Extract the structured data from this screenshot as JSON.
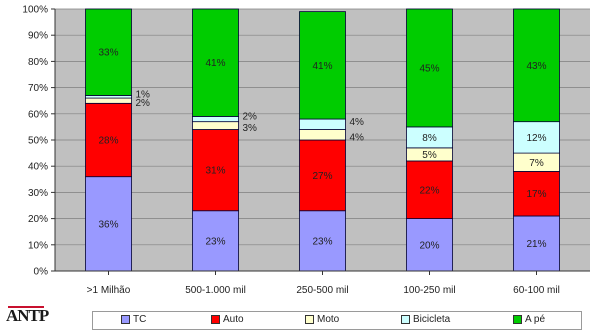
{
  "chart_data": {
    "type": "bar",
    "stacked": true,
    "percent": true,
    "categories": [
      ">1 Milhão",
      "500-1.000 mil",
      "250-500 mil",
      "100-250 mil",
      "60-100 mil"
    ],
    "series": [
      {
        "name": "TC",
        "color": "#9999ff",
        "values": [
          36,
          23,
          23,
          20,
          21
        ],
        "labels": [
          "36%",
          "23%",
          "23%",
          "20%",
          "21%"
        ]
      },
      {
        "name": "Auto",
        "color": "#ff0000",
        "values": [
          28,
          31,
          27,
          22,
          17
        ],
        "labels": [
          "28%",
          "31%",
          "27%",
          "22%",
          "17%"
        ]
      },
      {
        "name": "Moto",
        "color": "#ffffcc",
        "values": [
          2,
          3,
          4,
          5,
          7
        ],
        "labels": [
          "2%",
          "3%",
          "4%",
          "5%",
          "7%"
        ]
      },
      {
        "name": "Bicicleta",
        "color": "#ccffff",
        "values": [
          1,
          2,
          4,
          8,
          12
        ],
        "labels": [
          "1%",
          "2%",
          "4%",
          "8%",
          "12%"
        ]
      },
      {
        "name": "A pé",
        "color": "#00cc00",
        "values": [
          33,
          41,
          41,
          45,
          43
        ],
        "labels": [
          "33%",
          "41%",
          "41%",
          "45%",
          "43%"
        ]
      }
    ],
    "ylim": [
      0,
      100
    ],
    "yticks": [
      "0%",
      "10%",
      "20%",
      "30%",
      "40%",
      "50%",
      "60%",
      "70%",
      "80%",
      "90%",
      "100%"
    ],
    "legend_position": "bottom",
    "grid": true
  },
  "logo": {
    "text": "ANTP"
  },
  "colors": {
    "plot_bg": "#c0c0c0",
    "grid": "#7f7f7f",
    "bar_outline": "#000033"
  }
}
